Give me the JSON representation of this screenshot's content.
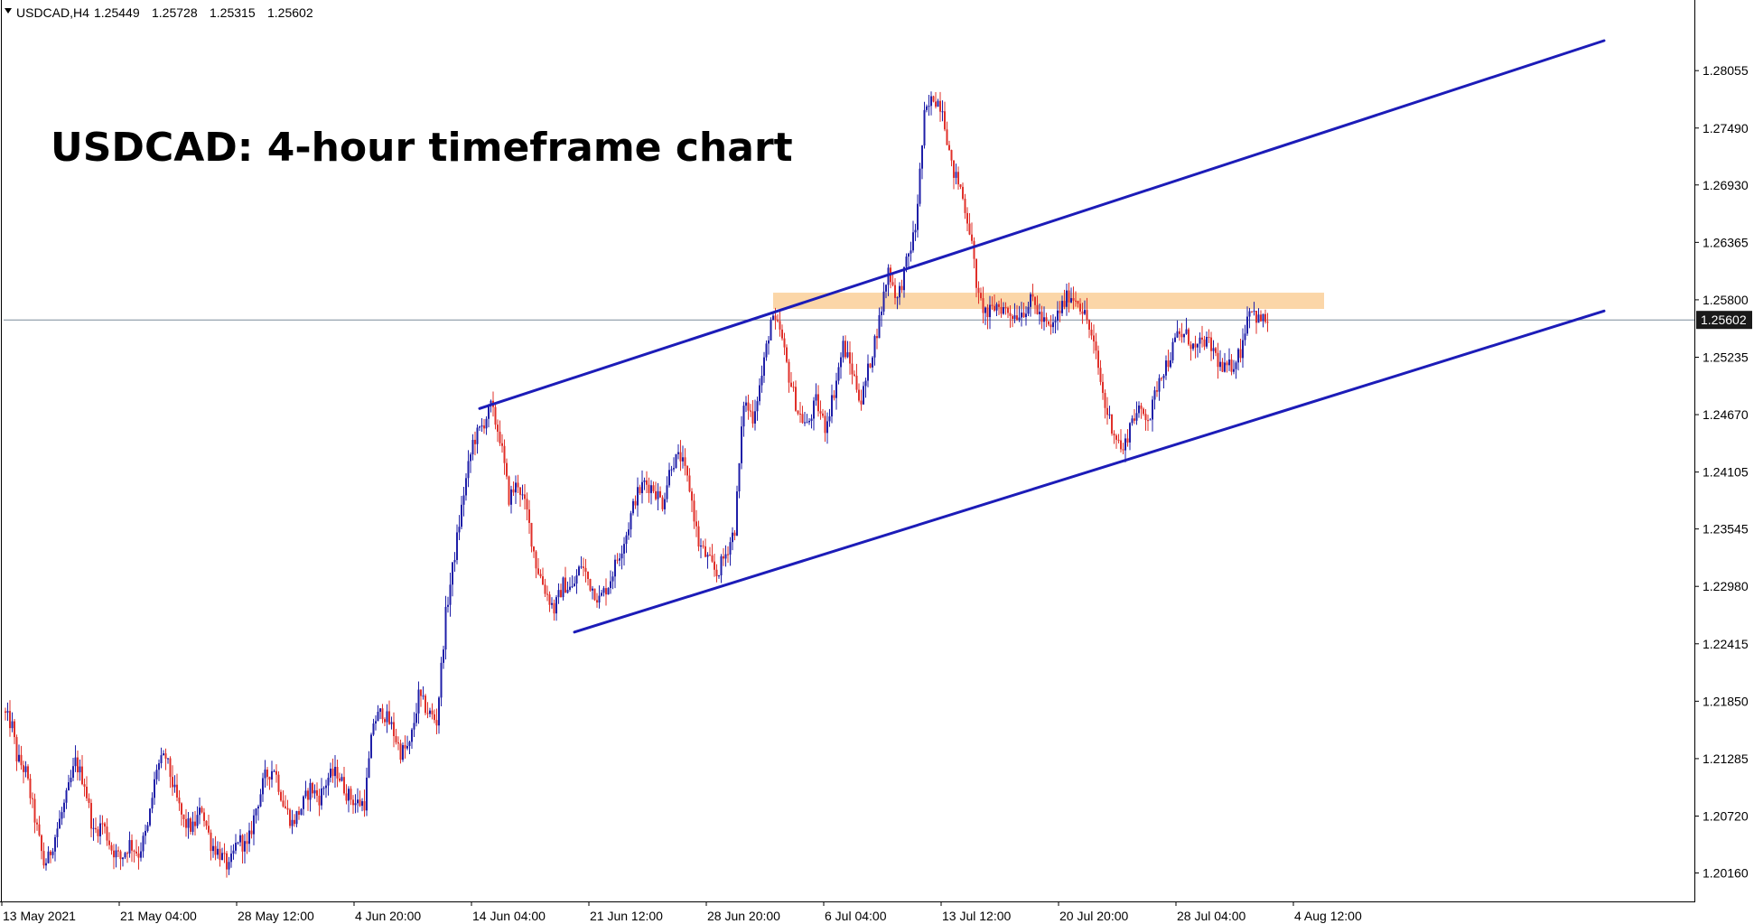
{
  "header": {
    "symbol": "USDCAD,H4",
    "open": "1.25449",
    "high": "1.25728",
    "low": "1.25315",
    "close": "1.25602"
  },
  "colors": {
    "bull": "#1f1fa8",
    "bear": "#e0302a",
    "trendline": "#1c1cb8",
    "zone": "#fbd6a8",
    "current_line": "#7a8a9a",
    "price_tag_bg": "#1a1a1a"
  },
  "chart_data": {
    "type": "candlestick",
    "title": "USDCAD: 4-hour timeframe chart",
    "ylim": [
      1.1988,
      1.2875
    ],
    "y_ticks": [
      "1.28055",
      "1.27490",
      "1.26930",
      "1.26365",
      "1.25800",
      "1.25235",
      "1.24670",
      "1.24105",
      "1.23545",
      "1.22980",
      "1.22415",
      "1.21850",
      "1.21285",
      "1.20720",
      "1.20160"
    ],
    "x_ticks": [
      "13 May 2021",
      "21 May 04:00",
      "28 May 12:00",
      "4 Jun 20:00",
      "14 Jun 04:00",
      "21 Jun 12:00",
      "28 Jun 20:00",
      "6 Jul 04:00",
      "13 Jul 12:00",
      "20 Jul 20:00",
      "28 Jul 04:00",
      "4 Aug 12:00"
    ],
    "current_price": "1.25602",
    "path": [
      [
        0,
        1.2175
      ],
      [
        4,
        1.216
      ],
      [
        6,
        1.213
      ],
      [
        10,
        1.2115
      ],
      [
        14,
        1.207
      ],
      [
        18,
        1.2025
      ],
      [
        20,
        1.203
      ],
      [
        24,
        1.206
      ],
      [
        28,
        1.209
      ],
      [
        32,
        1.2125
      ],
      [
        36,
        1.2105
      ],
      [
        40,
        1.2055
      ],
      [
        44,
        1.2065
      ],
      [
        48,
        1.204
      ],
      [
        52,
        1.203
      ],
      [
        56,
        1.2045
      ],
      [
        60,
        1.2035
      ],
      [
        64,
        1.206
      ],
      [
        68,
        1.212
      ],
      [
        72,
        1.213
      ],
      [
        76,
        1.2095
      ],
      [
        80,
        1.2065
      ],
      [
        84,
        1.206
      ],
      [
        88,
        1.208
      ],
      [
        92,
        1.2045
      ],
      [
        96,
        1.2035
      ],
      [
        100,
        1.202
      ],
      [
        104,
        1.205
      ],
      [
        108,
        1.204
      ],
      [
        112,
        1.208
      ],
      [
        116,
        1.211
      ],
      [
        120,
        1.212
      ],
      [
        124,
        1.2085
      ],
      [
        128,
        1.2065
      ],
      [
        132,
        1.208
      ],
      [
        136,
        1.21
      ],
      [
        140,
        1.209
      ],
      [
        144,
        1.211
      ],
      [
        148,
        1.2115
      ],
      [
        152,
        1.2095
      ],
      [
        156,
        1.2085
      ],
      [
        160,
        1.2085
      ],
      [
        164,
        1.2165
      ],
      [
        168,
        1.2175
      ],
      [
        172,
        1.216
      ],
      [
        176,
        1.2135
      ],
      [
        180,
        1.214
      ],
      [
        184,
        1.219
      ],
      [
        188,
        1.2175
      ],
      [
        192,
        1.2165
      ],
      [
        196,
        1.227
      ],
      [
        200,
        1.233
      ],
      [
        204,
        1.239
      ],
      [
        208,
        1.244
      ],
      [
        212,
        1.2455
      ],
      [
        216,
        1.2475
      ],
      [
        220,
        1.2445
      ],
      [
        224,
        1.2385
      ],
      [
        228,
        1.24
      ],
      [
        232,
        1.237
      ],
      [
        236,
        1.232
      ],
      [
        240,
        1.2295
      ],
      [
        244,
        1.2275
      ],
      [
        248,
        1.23
      ],
      [
        252,
        1.2295
      ],
      [
        256,
        1.232
      ],
      [
        260,
        1.23
      ],
      [
        264,
        1.2285
      ],
      [
        268,
        1.23
      ],
      [
        272,
        1.2325
      ],
      [
        276,
        1.235
      ],
      [
        280,
        1.2385
      ],
      [
        284,
        1.24
      ],
      [
        288,
        1.2395
      ],
      [
        292,
        1.238
      ],
      [
        296,
        1.242
      ],
      [
        300,
        1.2425
      ],
      [
        304,
        1.2395
      ],
      [
        308,
        1.234
      ],
      [
        312,
        1.2325
      ],
      [
        316,
        1.231
      ],
      [
        320,
        1.233
      ],
      [
        324,
        1.2355
      ],
      [
        328,
        1.248
      ],
      [
        332,
        1.2465
      ],
      [
        336,
        1.2505
      ],
      [
        340,
        1.256
      ],
      [
        344,
        1.255
      ],
      [
        348,
        1.2505
      ],
      [
        352,
        1.247
      ],
      [
        356,
        1.2455
      ],
      [
        360,
        1.248
      ],
      [
        364,
        1.2455
      ],
      [
        368,
        1.249
      ],
      [
        372,
        1.2535
      ],
      [
        376,
        1.251
      ],
      [
        380,
        1.248
      ],
      [
        384,
        1.252
      ],
      [
        388,
        1.256
      ],
      [
        392,
        1.261
      ],
      [
        396,
        1.258
      ],
      [
        400,
        1.2615
      ],
      [
        404,
        1.265
      ],
      [
        408,
        1.276
      ],
      [
        412,
        1.278
      ],
      [
        416,
        1.277
      ],
      [
        420,
        1.271
      ],
      [
        424,
        1.269
      ],
      [
        428,
        1.265
      ],
      [
        432,
        1.258
      ],
      [
        436,
        1.2565
      ],
      [
        440,
        1.2575
      ],
      [
        444,
        1.257
      ],
      [
        448,
        1.2565
      ],
      [
        452,
        1.257
      ],
      [
        456,
        1.258
      ],
      [
        460,
        1.256
      ],
      [
        464,
        1.255
      ],
      [
        468,
        1.257
      ],
      [
        472,
        1.2585
      ],
      [
        476,
        1.258
      ],
      [
        480,
        1.256
      ],
      [
        484,
        1.2525
      ],
      [
        488,
        1.2475
      ],
      [
        492,
        1.245
      ],
      [
        496,
        1.243
      ],
      [
        500,
        1.2465
      ],
      [
        504,
        1.247
      ],
      [
        508,
        1.2465
      ],
      [
        512,
        1.2505
      ],
      [
        516,
        1.252
      ],
      [
        520,
        1.2545
      ],
      [
        524,
        1.2545
      ],
      [
        528,
        1.253
      ],
      [
        532,
        1.254
      ],
      [
        536,
        1.253
      ],
      [
        540,
        1.251
      ],
      [
        544,
        1.2515
      ],
      [
        548,
        1.253
      ],
      [
        552,
        1.2575
      ],
      [
        556,
        1.256
      ],
      [
        559,
        1.256
      ]
    ],
    "trend_lines": [
      {
        "name": "upper-channel",
        "start": [
          210,
          1.2473
        ],
        "end": [
          708,
          1.2835
        ]
      },
      {
        "name": "lower-channel",
        "start": [
          252,
          1.2253
        ],
        "end": [
          708,
          1.2569
        ]
      }
    ],
    "resistance_zone": {
      "x_start": 340,
      "x_end": 584,
      "y_low": 1.2571,
      "y_high": 1.2587
    }
  }
}
